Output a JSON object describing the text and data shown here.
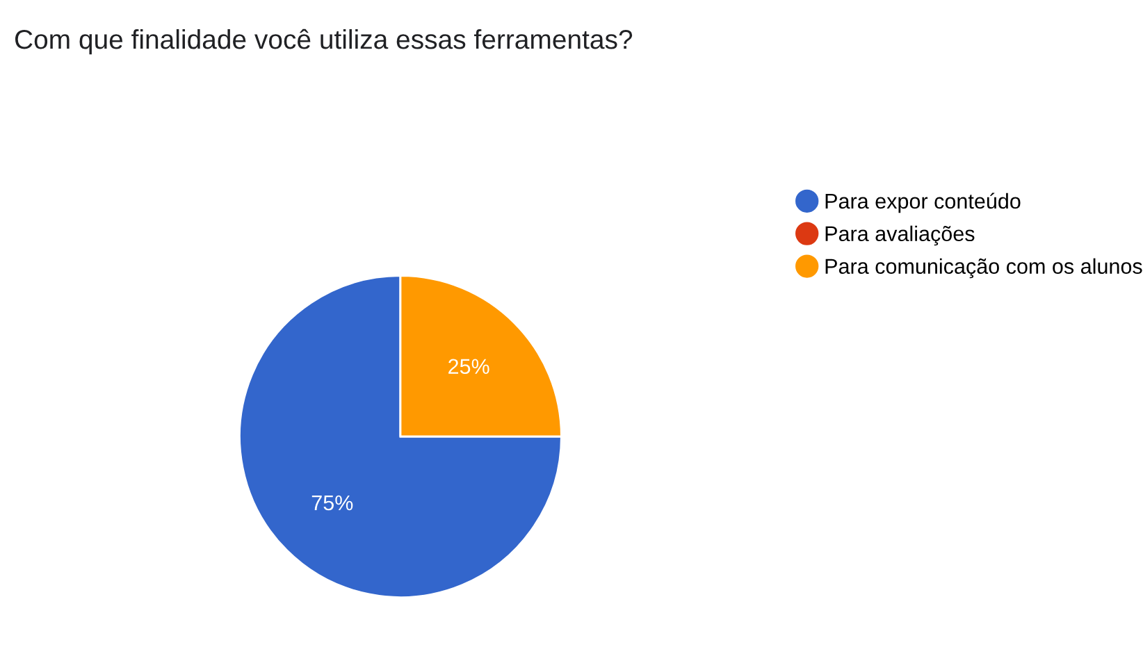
{
  "chart_data": {
    "type": "pie",
    "title": "Com que finalidade você utiliza essas ferramentas?",
    "categories": [
      "Para expor conteúdo",
      "Para avaliações",
      "Para comunicação com os alunos"
    ],
    "values": [
      75,
      0,
      25
    ],
    "colors": [
      "#3366cc",
      "#dc3912",
      "#ff9900"
    ],
    "value_labels": [
      "75%",
      null,
      "25%"
    ],
    "legend": "right"
  }
}
